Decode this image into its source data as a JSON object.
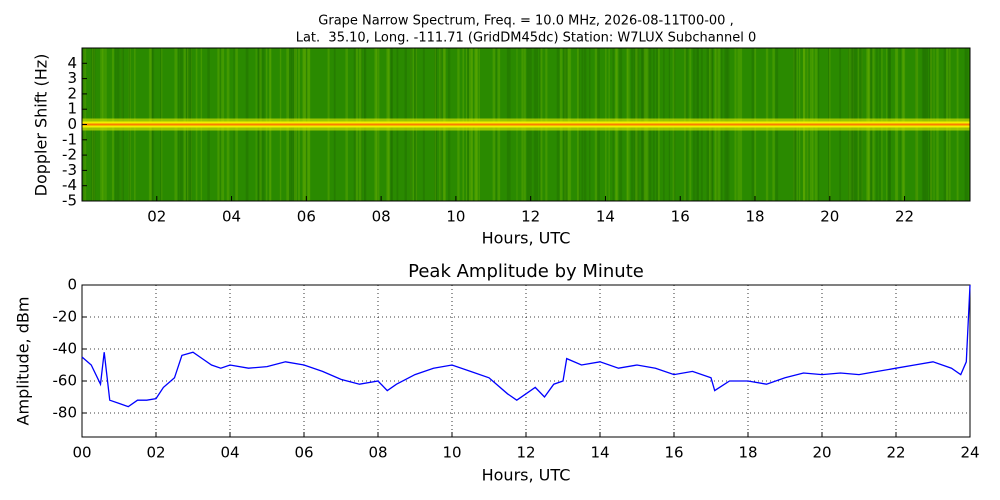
{
  "chart_data": [
    {
      "type": "spectrogram",
      "title": [
        "Grape Narrow Spectrum, Freq. = 10.0 MHz, 2026-08-11T00-00 ,",
        "Lat.  35.10, Long. -111.71 (GridDM45dc) Station: W7LUX Subchannel 0"
      ],
      "xlabel": "Hours, UTC",
      "ylabel": "Doppler Shift (Hz)",
      "xlim": [
        0,
        23.75
      ],
      "ylim": [
        -5,
        5
      ],
      "xticks": [
        {
          "value": 2,
          "label": "02"
        },
        {
          "value": 4,
          "label": "04"
        },
        {
          "value": 6,
          "label": "06"
        },
        {
          "value": 8,
          "label": "08"
        },
        10,
        12,
        14,
        16,
        18,
        20,
        22
      ],
      "yticks": [
        4,
        3,
        2,
        1,
        0,
        -1,
        -2,
        -3,
        -4,
        -5
      ]
    },
    {
      "type": "line",
      "title": "Peak Amplitude by Minute",
      "xlabel": "Hours, UTC",
      "ylabel": "Amplitude, dBm",
      "xlim": [
        0,
        24
      ],
      "ylim": [
        -95,
        0
      ],
      "xticks": [
        {
          "value": 0,
          "label": "00"
        },
        {
          "value": 2,
          "label": "02"
        },
        {
          "value": 4,
          "label": "04"
        },
        {
          "value": 6,
          "label": "06"
        },
        {
          "value": 8,
          "label": "08"
        },
        10,
        12,
        14,
        16,
        18,
        20,
        22,
        24
      ],
      "yticks": [
        0,
        -20,
        -40,
        -60,
        -80
      ],
      "grid": true,
      "color": "#0000ff",
      "x": [
        0,
        0.25,
        0.5,
        0.6,
        0.75,
        1,
        1.25,
        1.5,
        1.75,
        2,
        2.2,
        2.5,
        2.7,
        3,
        3.25,
        3.5,
        3.75,
        4,
        4.5,
        5,
        5.5,
        6,
        6.5,
        7,
        7.5,
        8,
        8.25,
        8.5,
        9,
        9.5,
        10,
        10.5,
        11,
        11.5,
        11.75,
        12,
        12.25,
        12.5,
        12.75,
        13,
        13.1,
        13.5,
        14,
        14.5,
        15,
        15.5,
        16,
        16.5,
        17,
        17.1,
        17.5,
        18,
        18.5,
        19,
        19.5,
        20,
        20.5,
        21,
        21.5,
        22,
        22.5,
        23,
        23.5,
        23.75,
        23.9,
        24
      ],
      "values": [
        -45,
        -50,
        -62,
        -42,
        -72,
        -74,
        -76,
        -72,
        -72,
        -71,
        -64,
        -58,
        -44,
        -42,
        -46,
        -50,
        -52,
        -50,
        -52,
        -51,
        -48,
        -50,
        -54,
        -59,
        -62,
        -60,
        -66,
        -62,
        -56,
        -52,
        -50,
        -54,
        -58,
        -68,
        -72,
        -68,
        -64,
        -70,
        -62,
        -60,
        -46,
        -50,
        -48,
        -52,
        -50,
        -52,
        -56,
        -54,
        -58,
        -66,
        -60,
        -60,
        -62,
        -58,
        -55,
        -56,
        -55,
        -56,
        -54,
        -52,
        -50,
        -48,
        -52,
        -56,
        -48,
        0
      ]
    }
  ]
}
